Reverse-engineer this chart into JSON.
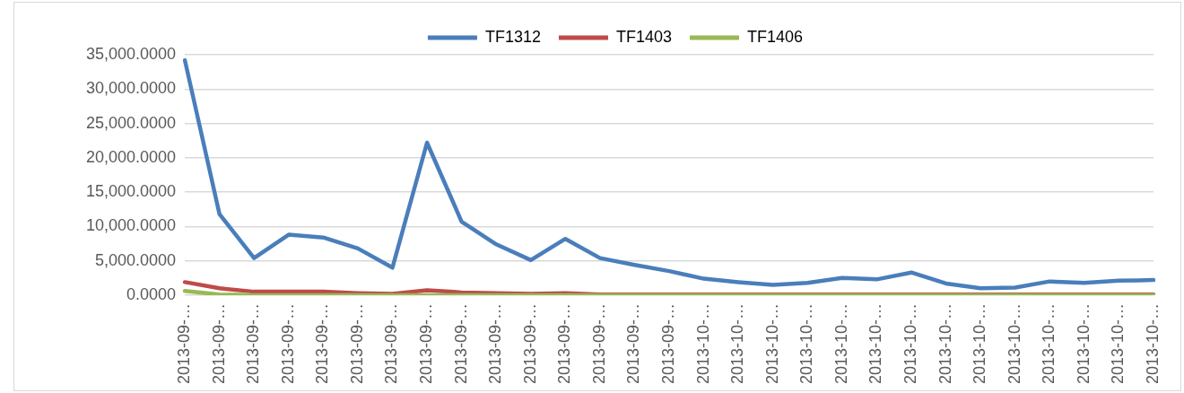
{
  "chart_data": {
    "type": "line",
    "categories": [
      "2013-09-…",
      "2013-09-…",
      "2013-09-…",
      "2013-09-…",
      "2013-09-…",
      "2013-09-…",
      "2013-09-…",
      "2013-09-…",
      "2013-09-…",
      "2013-09-…",
      "2013-09-…",
      "2013-09-…",
      "2013-09-…",
      "2013-09-…",
      "2013-09-…",
      "2013-10-…",
      "2013-10-…",
      "2013-10-…",
      "2013-10-…",
      "2013-10-…",
      "2013-10-…",
      "2013-10-…",
      "2013-10-…",
      "2013-10-…",
      "2013-10-…",
      "2013-10-…",
      "2013-10-…",
      "2013-10-…",
      "2013-10-…"
    ],
    "series": [
      {
        "name": "TF1312",
        "color": "#4a7ebb",
        "values": [
          34200,
          11800,
          5400,
          8800,
          8400,
          6800,
          4000,
          22200,
          10700,
          7400,
          5100,
          8200,
          5400,
          4400,
          3500,
          2400,
          1900,
          1500,
          1800,
          2500,
          2300,
          3300,
          1700,
          1000,
          1100,
          2000,
          1800,
          2100,
          2200
        ]
      },
      {
        "name": "TF1403",
        "color": "#be4b48",
        "values": [
          1900,
          1000,
          500,
          500,
          500,
          300,
          200,
          700,
          400,
          300,
          200,
          300,
          100,
          100,
          100,
          100,
          100,
          100,
          100,
          100,
          100,
          100,
          100,
          100,
          100,
          100,
          100,
          100,
          100
        ]
      },
      {
        "name": "TF1406",
        "color": "#98b954",
        "values": [
          600,
          100,
          0,
          0,
          0,
          0,
          0,
          0,
          0,
          0,
          0,
          0,
          0,
          0,
          0,
          0,
          0,
          0,
          0,
          0,
          0,
          0,
          0,
          0,
          0,
          0,
          0,
          0,
          0
        ]
      }
    ],
    "ylim": [
      0,
      35000
    ],
    "yticks": [
      {
        "value": 0,
        "label": "0.0000"
      },
      {
        "value": 5000,
        "label": "5,000.0000"
      },
      {
        "value": 10000,
        "label": "10,000.0000"
      },
      {
        "value": 15000,
        "label": "15,000.0000"
      },
      {
        "value": 20000,
        "label": "20,000.0000"
      },
      {
        "value": 25000,
        "label": "25,000.0000"
      },
      {
        "value": 30000,
        "label": "30,000.0000"
      },
      {
        "value": 35000,
        "label": "35,000.0000"
      }
    ],
    "grid": "y",
    "legend": "top",
    "marker": "none",
    "line_style": "solid"
  }
}
